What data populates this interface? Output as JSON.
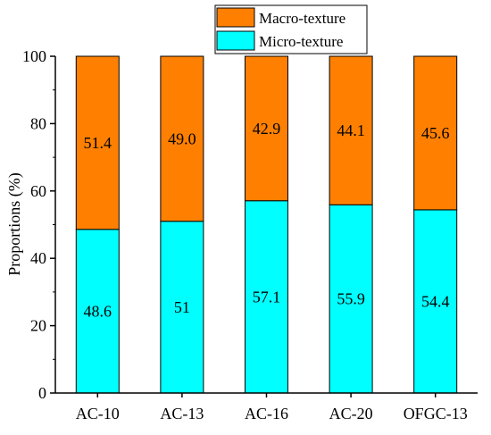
{
  "chart_data": {
    "type": "bar",
    "stacked": true,
    "title": "",
    "xlabel": "",
    "ylabel": "Proportions (%)",
    "ylim": [
      0,
      100
    ],
    "yticks": [
      "0",
      "20",
      "40",
      "60",
      "80",
      "100"
    ],
    "categories": [
      "AC-10",
      "AC-13",
      "AC-16",
      "AC-20",
      "OFGC-13"
    ],
    "series": [
      {
        "name": "Micro-texture",
        "color": "#00ffff",
        "values": [
          48.6,
          51,
          57.1,
          55.9,
          54.4
        ],
        "labels": [
          "48.6",
          "51",
          "57.1",
          "55.9",
          "54.4"
        ]
      },
      {
        "name": "Macro-texture",
        "color": "#ff8000",
        "values": [
          51.4,
          49.0,
          42.9,
          44.1,
          45.6
        ],
        "labels": [
          "51.4",
          "49.0",
          "42.9",
          "44.1",
          "45.6"
        ]
      }
    ],
    "legend": {
      "placement": "top",
      "items": [
        "Macro-texture",
        "Micro-texture"
      ]
    },
    "grid": false
  }
}
